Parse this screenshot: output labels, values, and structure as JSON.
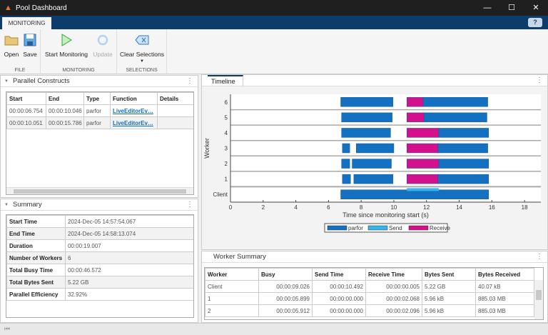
{
  "window": {
    "title": "Pool Dashboard",
    "controls": [
      "minimize",
      "maximize",
      "close"
    ]
  },
  "ribbon": {
    "tab": "MONITORING",
    "help": "?",
    "groups": [
      {
        "label": "FILE",
        "buttons": [
          {
            "label": "Open",
            "icon": "folder-icon"
          },
          {
            "label": "Save",
            "icon": "save-icon"
          }
        ]
      },
      {
        "label": "MONITORING",
        "buttons": [
          {
            "label": "Start Monitoring",
            "icon": "play-icon"
          },
          {
            "label": "Update",
            "icon": "refresh-icon",
            "disabled": true
          }
        ]
      },
      {
        "label": "SELECTIONS",
        "buttons": [
          {
            "label": "Clear Selections",
            "icon": "clear-icon"
          }
        ]
      }
    ]
  },
  "parallel_constructs": {
    "title": "Parallel Constructs",
    "columns": [
      "Start",
      "End",
      "Type",
      "Function",
      "Details"
    ],
    "rows": [
      [
        "00:00:06.754",
        "00:00:10.046",
        "parfor",
        "LiveEditorEv…",
        ""
      ],
      [
        "00:00:10.051",
        "00:00:15.786",
        "parfor",
        "LiveEditorEv…",
        ""
      ]
    ]
  },
  "summary": {
    "title": "Summary",
    "rows": [
      [
        "Start Time",
        "2024-Dec-05 14:57:54.067"
      ],
      [
        "End Time",
        "2024-Dec-05 14:58:13.074"
      ],
      [
        "Duration",
        "00:00:19.007"
      ],
      [
        "Number of Workers",
        "6"
      ],
      [
        "Total Busy Time",
        "00:00:46.572"
      ],
      [
        "Total Bytes Sent",
        "5.22 GB"
      ],
      [
        "Parallel Efficiency",
        "32.92%"
      ]
    ]
  },
  "timeline": {
    "tab": "Timeline",
    "chart_data": {
      "type": "timeline",
      "xlabel": "Time since monitoring start (s)",
      "ylabel": "Worker",
      "xlim": [
        0,
        19
      ],
      "xticks": [
        0,
        2,
        4,
        6,
        8,
        10,
        12,
        14,
        16,
        18
      ],
      "categories": [
        "Client",
        "1",
        "2",
        "3",
        "4",
        "5",
        "6"
      ],
      "legend": [
        {
          "name": "parfor",
          "color": "#1470c0"
        },
        {
          "name": "Send",
          "color": "#35b5ea"
        },
        {
          "name": "Receive",
          "color": "#d4108c"
        }
      ],
      "legend_position": "bottom",
      "segments": {
        "6": [
          [
            "parfor",
            6.75,
            9.95
          ],
          [
            "Receive",
            10.8,
            11.8
          ],
          [
            "parfor",
            11.8,
            15.75
          ]
        ],
        "5": [
          [
            "parfor",
            6.8,
            9.9
          ],
          [
            "Receive",
            10.8,
            11.85
          ],
          [
            "parfor",
            11.85,
            15.7
          ]
        ],
        "4": [
          [
            "parfor",
            6.8,
            9.8
          ],
          [
            "Receive",
            10.8,
            12.75
          ],
          [
            "parfor",
            12.75,
            15.8
          ]
        ],
        "3": [
          [
            "parfor",
            6.85,
            7.3
          ],
          [
            "parfor",
            7.7,
            10.0
          ],
          [
            "Receive",
            10.8,
            12.75
          ],
          [
            "parfor",
            12.7,
            15.75
          ]
        ],
        "2": [
          [
            "parfor",
            6.8,
            7.3
          ],
          [
            "parfor",
            7.45,
            9.85
          ],
          [
            "Receive",
            10.8,
            12.75
          ],
          [
            "parfor",
            12.75,
            15.8
          ]
        ],
        "1": [
          [
            "parfor",
            6.85,
            7.35
          ],
          [
            "parfor",
            7.55,
            9.95
          ],
          [
            "Receive",
            10.8,
            12.75
          ],
          [
            "parfor",
            12.7,
            15.8
          ]
        ],
        "Client": [
          [
            "parfor",
            6.75,
            15.8
          ],
          [
            "Send",
            10.8,
            12.75
          ]
        ]
      }
    }
  },
  "worker_summary": {
    "title": "Worker Summary",
    "columns": [
      "Worker",
      "Busy",
      "Send Time",
      "Receive Time",
      "Bytes Sent",
      "Bytes Received"
    ],
    "rows": [
      [
        "Client",
        "00:00:09.026",
        "00:00:10.492",
        "00:00:00.005",
        "5.22 GB",
        "40.07 kB"
      ],
      [
        "1",
        "00:00:05.899",
        "00:00:00.000",
        "00:00:02.068",
        "5.96 kB",
        "885.03 MB"
      ],
      [
        "2",
        "00:00:05.912",
        "00:00:00.000",
        "00:00:02.096",
        "5.96 kB",
        "885.03 MB"
      ]
    ]
  }
}
